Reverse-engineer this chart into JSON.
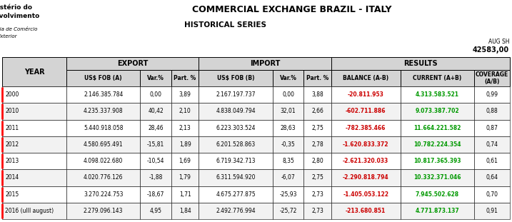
{
  "title": "COMMERCIAL EXCHANGE BRAZIL - ITALY",
  "subtitle": "HISTORICAL SERIES",
  "ministry_line1": "Ministério do",
  "ministry_line2": "Desenvolvimento",
  "secretaria_line1": "Secretaria de Comércio",
  "secretaria_line2": "Exterior",
  "aug_sh_label": "AUG SH",
  "aug_sh_value": "42583,00",
  "col_headers": [
    "YEAR",
    "US$ FOB (A)",
    "Var.%",
    "Part. %",
    "US$ FOB (B)",
    "Var.%",
    "Part. %",
    "BALANCE (A-B)",
    "CURRENT (A+B)",
    "COVERAGE\n(A/B)"
  ],
  "rows": [
    [
      "2000",
      "2.146.385.784",
      "0,00",
      "3,89",
      "2.167.197.737",
      "0,00",
      "3,88",
      "-20.811.953",
      "4.313.583.521",
      "0,99"
    ],
    [
      "2010",
      "4.235.337.908",
      "40,42",
      "2,10",
      "4.838.049.794",
      "32,01",
      "2,66",
      "-602.711.886",
      "9.073.387.702",
      "0,88"
    ],
    [
      "2011",
      "5.440.918.058",
      "28,46",
      "2,13",
      "6.223.303.524",
      "28,63",
      "2,75",
      "-782.385.466",
      "11.664.221.582",
      "0,87"
    ],
    [
      "2012",
      "4.580.695.491",
      "-15,81",
      "1,89",
      "6.201.528.863",
      "-0,35",
      "2,78",
      "-1.620.833.372",
      "10.782.224.354",
      "0,74"
    ],
    [
      "2013",
      "4.098.022.680",
      "-10,54",
      "1,69",
      "6.719.342.713",
      "8,35",
      "2,80",
      "-2.621.320.033",
      "10.817.365.393",
      "0,61"
    ],
    [
      "2014",
      "4.020.776.126",
      "-1,88",
      "1,79",
      "6.311.594.920",
      "-6,07",
      "2,75",
      "-2.290.818.794",
      "10.332.371.046",
      "0,64"
    ],
    [
      "2015",
      "3.270.224.753",
      "-18,67",
      "1,71",
      "4.675.277.875",
      "-25,93",
      "2,73",
      "-1.405.053.122",
      "7.945.502.628",
      "0,70"
    ],
    [
      "2016 (ulll august)",
      "2.279.096.143",
      "4,95",
      "1,84",
      "2.492.776.994",
      "-25,72",
      "2,73",
      "-213.680.851",
      "4.771.873.137",
      "0,91"
    ]
  ],
  "balance_color": "#cc0000",
  "current_color": "#009900",
  "header_bg": "#d4d4d4",
  "fig_width": 7.17,
  "fig_height": 3.11,
  "dpi": 100,
  "col_widths_rel": [
    1.35,
    1.55,
    0.65,
    0.58,
    1.55,
    0.65,
    0.58,
    1.45,
    1.55,
    0.75
  ]
}
